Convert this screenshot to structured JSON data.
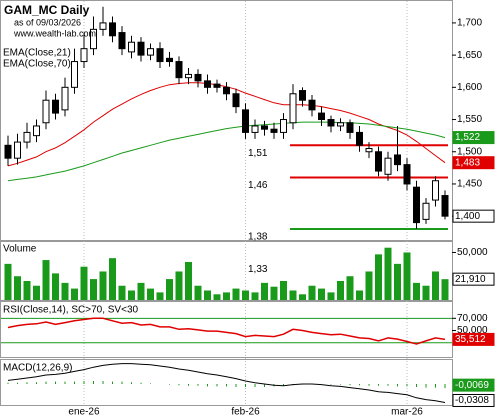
{
  "chart_data": {
    "type": "candlestick",
    "title": "GAM_MC Daily",
    "subtitle": "as of 09/03/2026",
    "source": "www.wealth-lab.com",
    "x_labels": [
      {
        "value": 8,
        "label": "ene-26"
      },
      {
        "value": 25,
        "label": "feb-26"
      },
      {
        "value": 42,
        "label": "mar-26"
      }
    ],
    "ylim": [
      1.363,
      1.734
    ],
    "yticks": [
      {
        "value": 1.4,
        "label": "1,400"
      },
      {
        "value": 1.45,
        "label": "1,450"
      },
      {
        "value": 1.5,
        "label": "1,500"
      },
      {
        "value": 1.55,
        "label": "1,550"
      },
      {
        "value": 1.6,
        "label": "1,600"
      },
      {
        "value": 1.65,
        "label": "1,650"
      },
      {
        "value": 1.7,
        "label": "1,700"
      }
    ],
    "candles": {
      "open": [
        1.51,
        1.49,
        1.515,
        1.525,
        1.545,
        1.58,
        1.565,
        1.6,
        1.64,
        1.66,
        1.69,
        1.7,
        1.685,
        1.655,
        1.67,
        1.65,
        1.66,
        1.645,
        1.64,
        1.615,
        1.62,
        1.61,
        1.605,
        1.6,
        1.59,
        1.565,
        1.53,
        1.54,
        1.535,
        1.53,
        1.545,
        1.595,
        1.58,
        1.56,
        1.55,
        1.54,
        1.545,
        1.53,
        1.5,
        1.5,
        1.465,
        1.495,
        1.48,
        1.445,
        1.395,
        1.425,
        1.432
      ],
      "high": [
        1.525,
        1.528,
        1.545,
        1.55,
        1.595,
        1.59,
        1.615,
        1.66,
        1.685,
        1.71,
        1.725,
        1.71,
        1.695,
        1.68,
        1.678,
        1.668,
        1.67,
        1.655,
        1.648,
        1.63,
        1.628,
        1.62,
        1.612,
        1.608,
        1.598,
        1.575,
        1.55,
        1.548,
        1.545,
        1.56,
        1.605,
        1.6,
        1.588,
        1.57,
        1.556,
        1.552,
        1.55,
        1.54,
        1.515,
        1.508,
        1.5,
        1.54,
        1.49,
        1.455,
        1.428,
        1.462,
        1.44
      ],
      "low": [
        1.478,
        1.48,
        1.505,
        1.515,
        1.535,
        1.55,
        1.555,
        1.59,
        1.63,
        1.65,
        1.68,
        1.67,
        1.65,
        1.645,
        1.64,
        1.642,
        1.63,
        1.632,
        1.605,
        1.605,
        1.6,
        1.59,
        1.592,
        1.58,
        1.56,
        1.52,
        1.52,
        1.525,
        1.52,
        1.52,
        1.535,
        1.57,
        1.555,
        1.54,
        1.53,
        1.532,
        1.52,
        1.5,
        1.49,
        1.462,
        1.455,
        1.47,
        1.44,
        1.38,
        1.388,
        1.415,
        1.395
      ],
      "close": [
        1.49,
        1.515,
        1.53,
        1.54,
        1.58,
        1.56,
        1.6,
        1.64,
        1.66,
        1.69,
        1.7,
        1.68,
        1.66,
        1.67,
        1.65,
        1.66,
        1.64,
        1.64,
        1.615,
        1.62,
        1.61,
        1.6,
        1.6,
        1.59,
        1.57,
        1.53,
        1.54,
        1.535,
        1.53,
        1.55,
        1.59,
        1.58,
        1.565,
        1.55,
        1.54,
        1.545,
        1.53,
        1.51,
        1.505,
        1.47,
        1.49,
        1.48,
        1.45,
        1.39,
        1.42,
        1.455,
        1.4
      ],
      "last_label": "1,400"
    },
    "overlays": [
      {
        "name": "EMA(Close,21)",
        "color": "#e00000",
        "last_label": "1,483",
        "values": [
          1.478,
          1.482,
          1.487,
          1.492,
          1.5,
          1.506,
          1.514,
          1.524,
          1.534,
          1.546,
          1.556,
          1.566,
          1.574,
          1.582,
          1.589,
          1.595,
          1.6,
          1.604,
          1.606,
          1.607,
          1.607,
          1.606,
          1.604,
          1.601,
          1.597,
          1.591,
          1.586,
          1.581,
          1.576,
          1.573,
          1.573,
          1.573,
          1.572,
          1.57,
          1.567,
          1.564,
          1.56,
          1.555,
          1.55,
          1.543,
          1.538,
          1.533,
          1.526,
          1.516,
          1.505,
          1.494,
          1.483
        ]
      },
      {
        "name": "EMA(Close,70)",
        "color": "#1a9a1a",
        "last_label": "1,522",
        "values": [
          1.455,
          1.457,
          1.459,
          1.461,
          1.464,
          1.467,
          1.47,
          1.474,
          1.478,
          1.483,
          1.488,
          1.493,
          1.498,
          1.502,
          1.506,
          1.51,
          1.514,
          1.518,
          1.521,
          1.524,
          1.527,
          1.53,
          1.533,
          1.536,
          1.538,
          1.54,
          1.541,
          1.542,
          1.543,
          1.544,
          1.545,
          1.546,
          1.546,
          1.546,
          1.546,
          1.545,
          1.545,
          1.544,
          1.543,
          1.541,
          1.539,
          1.537,
          1.535,
          1.532,
          1.529,
          1.526,
          1.522
        ]
      }
    ],
    "levels": [
      {
        "value": 1.51,
        "label": "1,51",
        "color": "#e00000"
      },
      {
        "value": 1.46,
        "label": "1,46",
        "color": "#e00000"
      },
      {
        "value": 1.38,
        "label": "1,38",
        "color": "#1a9a1a"
      },
      {
        "value": 1.33,
        "label": "1,33"
      }
    ],
    "volume": {
      "name": "Volume",
      "color": "#1a9a1a",
      "ylim": [
        0,
        61000
      ],
      "yticks": [
        {
          "value": 50000,
          "label": "50,000"
        }
      ],
      "last_label": "21,910",
      "values": [
        38000,
        25000,
        20000,
        15000,
        42000,
        28000,
        18000,
        12000,
        35000,
        22000,
        30000,
        44000,
        15000,
        10000,
        18000,
        12000,
        8000,
        22000,
        30000,
        40000,
        15000,
        10000,
        6000,
        8000,
        12000,
        10000,
        8000,
        18000,
        14000,
        20000,
        10000,
        6000,
        15000,
        12000,
        8000,
        20000,
        25000,
        10000,
        30000,
        48000,
        55000,
        38000,
        50000,
        18000,
        15000,
        30000,
        21910
      ]
    },
    "rsi": {
      "name": "RSI(Close,14), SC>70, SV<30",
      "color": "#e00000",
      "ylim": [
        6.7,
        96.7
      ],
      "yticks": [
        {
          "value": 70,
          "label": "70,000"
        },
        {
          "value": 50,
          "label": "50,000"
        }
      ],
      "bands": [
        70,
        30
      ],
      "band_color": "#1a9a1a",
      "last_label": "35,512",
      "values": [
        55,
        58,
        60,
        61,
        64,
        60,
        63,
        66,
        68,
        70,
        70,
        66,
        62,
        63,
        59,
        60,
        56,
        56,
        52,
        53,
        51,
        49,
        49,
        47,
        45,
        40,
        42,
        41,
        40,
        44,
        52,
        50,
        47,
        45,
        43,
        44,
        41,
        38,
        37,
        33,
        38,
        36,
        32,
        28,
        33,
        38,
        35.512
      ]
    },
    "macd": {
      "name": "MACD(12,26,9)",
      "color": "#000000",
      "ylim": [
        -0.035,
        0.04
      ],
      "last_label": "-0,0308",
      "values": [
        0.006,
        0.008,
        0.01,
        0.012,
        0.015,
        0.016,
        0.018,
        0.021,
        0.024,
        0.028,
        0.031,
        0.033,
        0.034,
        0.034,
        0.033,
        0.032,
        0.03,
        0.028,
        0.025,
        0.023,
        0.02,
        0.017,
        0.015,
        0.012,
        0.009,
        0.005,
        0.002,
        0,
        -0.002,
        -0.003,
        -0.001,
        0,
        0,
        -0.001,
        -0.003,
        -0.004,
        -0.006,
        -0.008,
        -0.01,
        -0.013,
        -0.014,
        -0.016,
        -0.018,
        -0.023,
        -0.026,
        -0.028,
        -0.0308
      ],
      "histogram": {
        "color": "#1a9a1a",
        "last_label": "-0,0069",
        "values": [
          0.002,
          0.002,
          0.003,
          0.003,
          0.004,
          0.004,
          0.004,
          0.004,
          0.005,
          0.005,
          0.005,
          0.004,
          0.004,
          0.003,
          0.002,
          0.001,
          0,
          -0.001,
          -0.002,
          -0.003,
          -0.003,
          -0.004,
          -0.004,
          -0.004,
          -0.005,
          -0.005,
          -0.005,
          -0.005,
          -0.004,
          -0.003,
          -0.002,
          -0.001,
          0,
          0,
          -0.001,
          -0.001,
          -0.002,
          -0.002,
          -0.003,
          -0.003,
          -0.003,
          -0.004,
          -0.004,
          -0.005,
          -0.006,
          -0.006,
          -0.0069
        ]
      }
    }
  }
}
